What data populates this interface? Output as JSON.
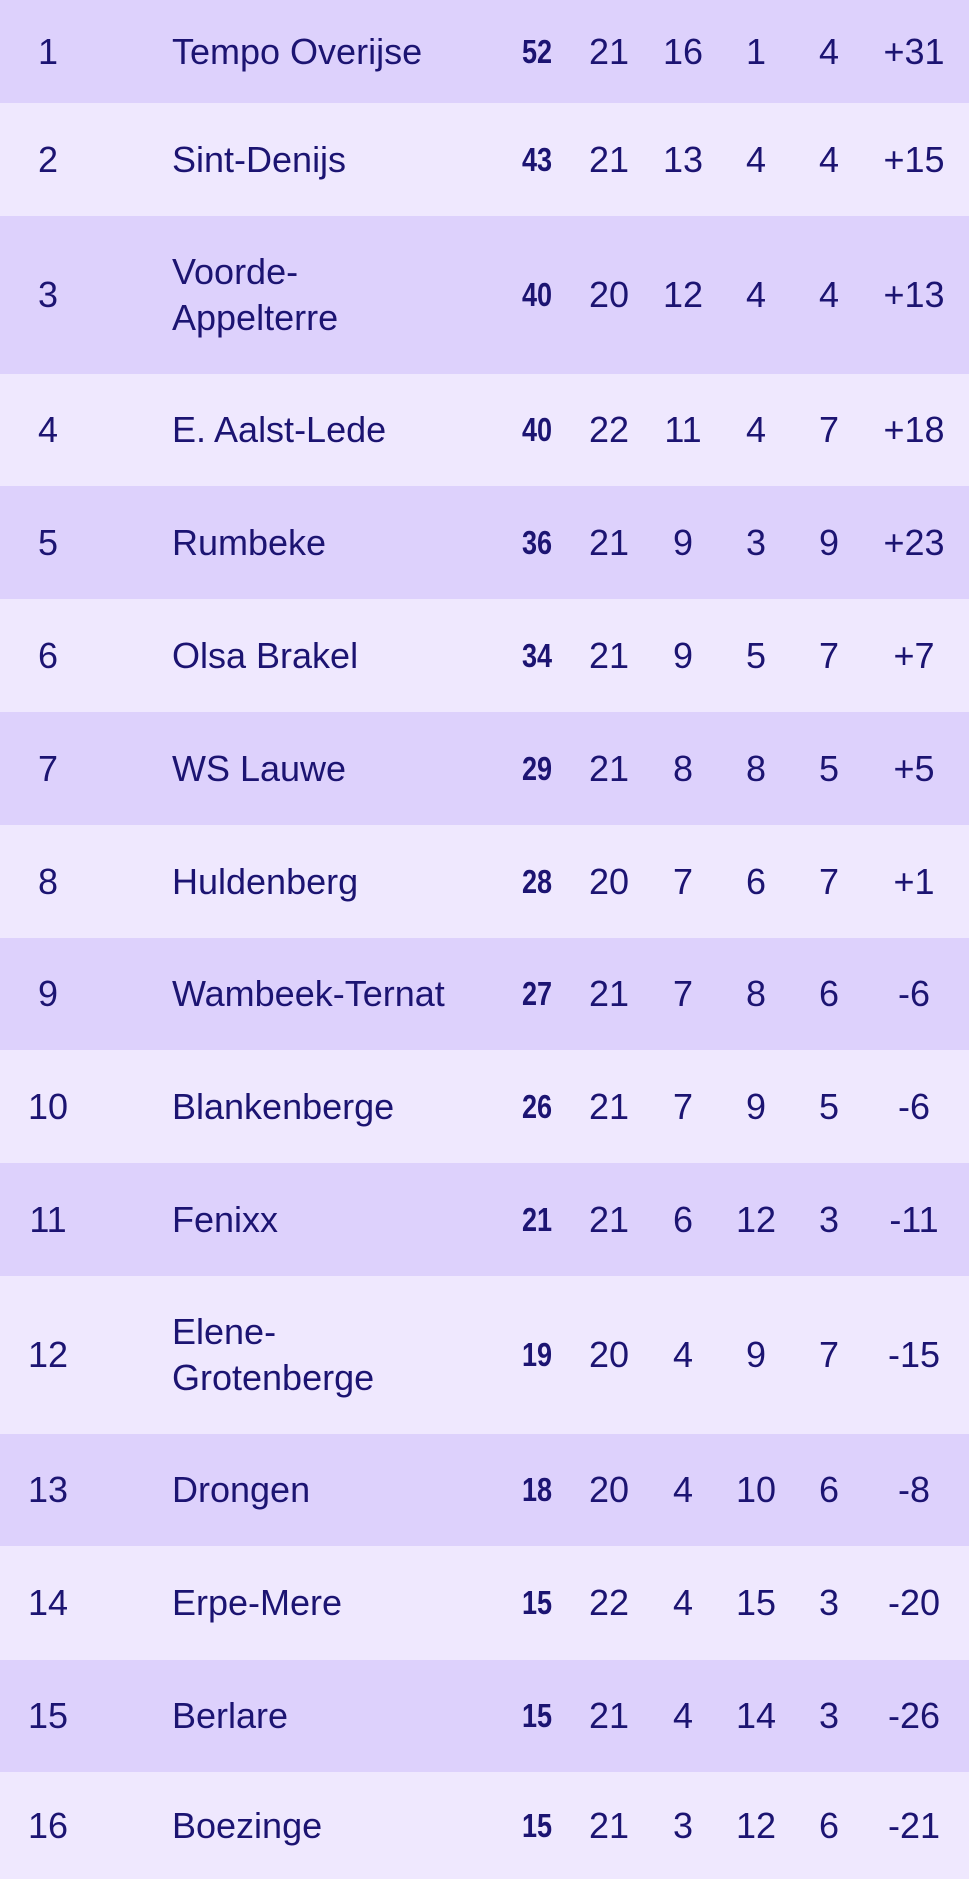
{
  "colors": {
    "row_odd": "#ddd1fc",
    "row_even": "#efe8fe",
    "text": "#1c1472"
  },
  "standings": [
    {
      "rank": "1",
      "team": "Tempo Overijse",
      "points": "52",
      "played": "21",
      "won": "16",
      "drawn": "1",
      "lost": "4",
      "goal_diff": "+31"
    },
    {
      "rank": "2",
      "team": "Sint-Denijs",
      "points": "43",
      "played": "21",
      "won": "13",
      "drawn": "4",
      "lost": "4",
      "goal_diff": "+15"
    },
    {
      "rank": "3",
      "team": "Voorde-\nAppelterre",
      "points": "40",
      "played": "20",
      "won": "12",
      "drawn": "4",
      "lost": "4",
      "goal_diff": "+13"
    },
    {
      "rank": "4",
      "team": "E. Aalst-Lede",
      "points": "40",
      "played": "22",
      "won": "11",
      "drawn": "4",
      "lost": "7",
      "goal_diff": "+18"
    },
    {
      "rank": "5",
      "team": "Rumbeke",
      "points": "36",
      "played": "21",
      "won": "9",
      "drawn": "3",
      "lost": "9",
      "goal_diff": "+23"
    },
    {
      "rank": "6",
      "team": "Olsa Brakel",
      "points": "34",
      "played": "21",
      "won": "9",
      "drawn": "5",
      "lost": "7",
      "goal_diff": "+7"
    },
    {
      "rank": "7",
      "team": "WS Lauwe",
      "points": "29",
      "played": "21",
      "won": "8",
      "drawn": "8",
      "lost": "5",
      "goal_diff": "+5"
    },
    {
      "rank": "8",
      "team": "Huldenberg",
      "points": "28",
      "played": "20",
      "won": "7",
      "drawn": "6",
      "lost": "7",
      "goal_diff": "+1"
    },
    {
      "rank": "9",
      "team": "Wambeek-Ternat",
      "points": "27",
      "played": "21",
      "won": "7",
      "drawn": "8",
      "lost": "6",
      "goal_diff": "-6"
    },
    {
      "rank": "10",
      "team": "Blankenberge",
      "points": "26",
      "played": "21",
      "won": "7",
      "drawn": "9",
      "lost": "5",
      "goal_diff": "-6"
    },
    {
      "rank": "11",
      "team": "Fenixx",
      "points": "21",
      "played": "21",
      "won": "6",
      "drawn": "12",
      "lost": "3",
      "goal_diff": "-11"
    },
    {
      "rank": "12",
      "team": "Elene-\nGrotenberge",
      "points": "19",
      "played": "20",
      "won": "4",
      "drawn": "9",
      "lost": "7",
      "goal_diff": "-15"
    },
    {
      "rank": "13",
      "team": "Drongen",
      "points": "18",
      "played": "20",
      "won": "4",
      "drawn": "10",
      "lost": "6",
      "goal_diff": "-8"
    },
    {
      "rank": "14",
      "team": "Erpe-Mere",
      "points": "15",
      "played": "22",
      "won": "4",
      "drawn": "15",
      "lost": "3",
      "goal_diff": "-20"
    },
    {
      "rank": "15",
      "team": "Berlare",
      "points": "15",
      "played": "21",
      "won": "4",
      "drawn": "14",
      "lost": "3",
      "goal_diff": "-26"
    },
    {
      "rank": "16",
      "team": "Boezinge",
      "points": "15",
      "played": "21",
      "won": "3",
      "drawn": "12",
      "lost": "6",
      "goal_diff": "-21"
    }
  ]
}
